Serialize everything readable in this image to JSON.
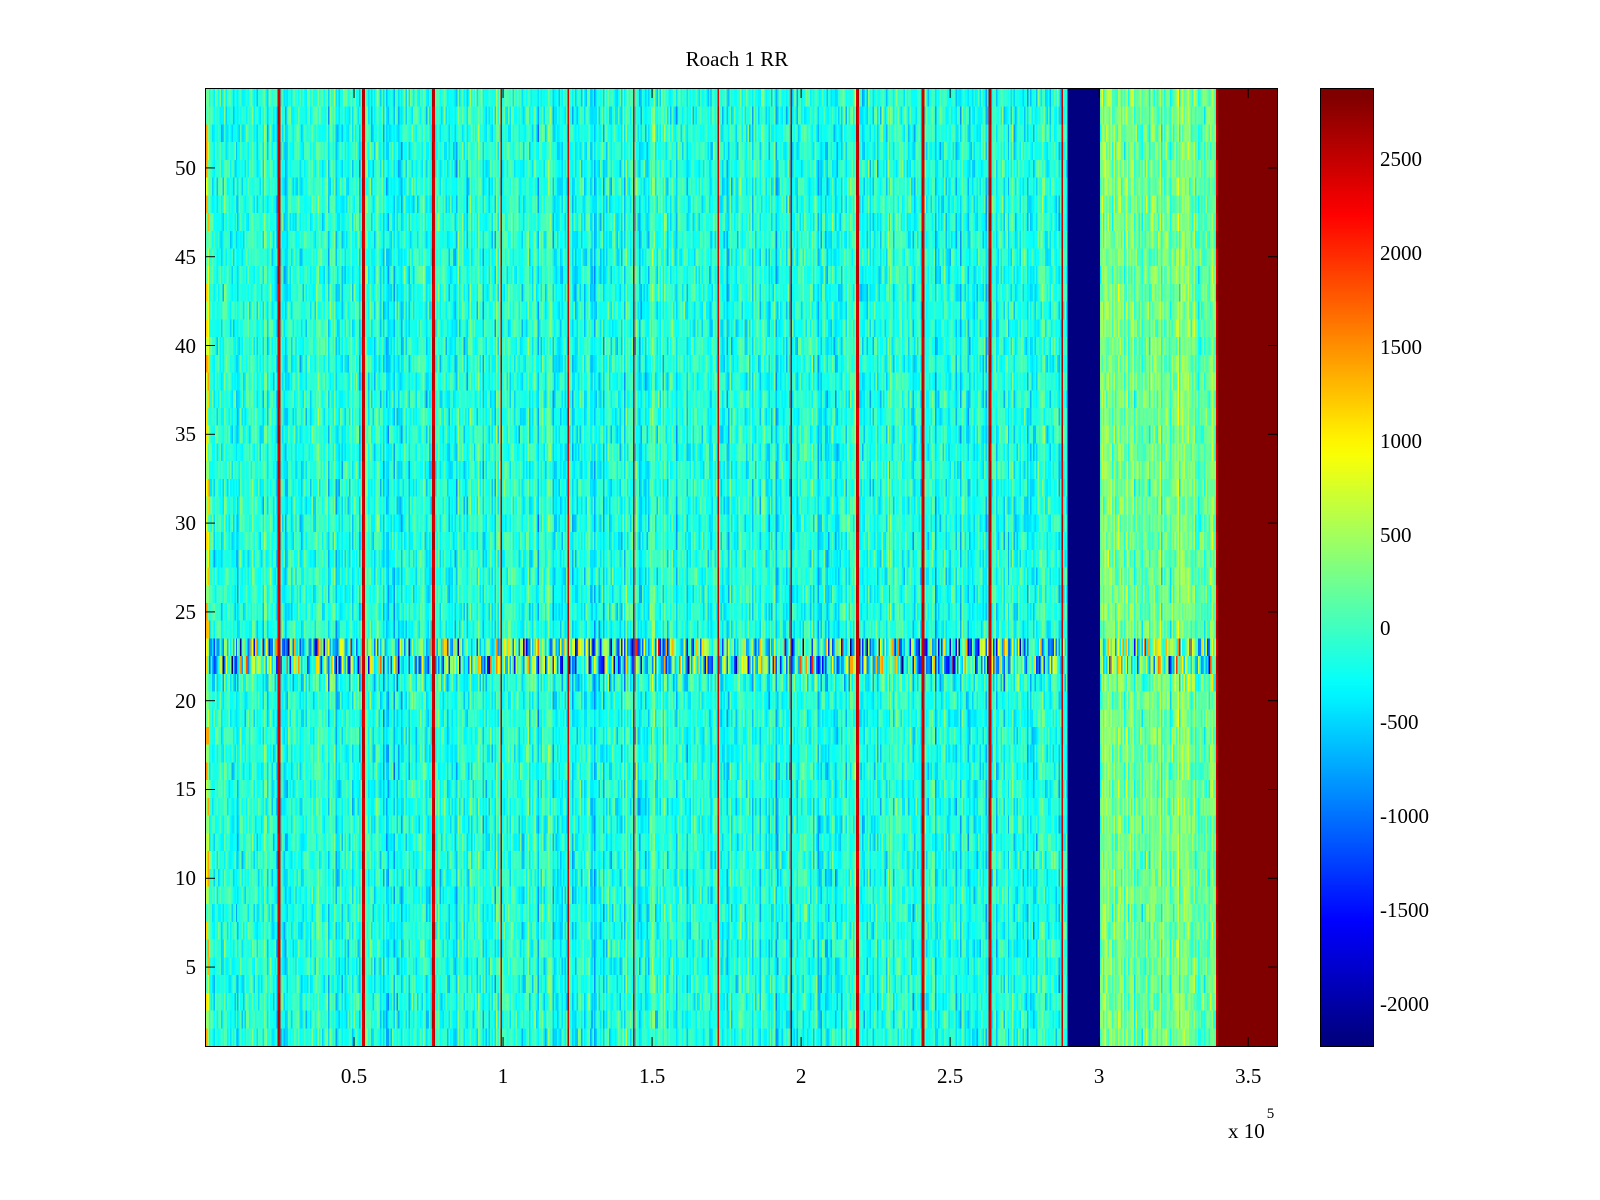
{
  "chart_data": {
    "type": "heatmap",
    "title": "Roach 1 RR",
    "xlabel": "",
    "ylabel": "",
    "xlim": [
      0,
      360000
    ],
    "ylim": [
      0.5,
      54.5
    ],
    "x_ticks": [
      50000,
      100000,
      150000,
      200000,
      250000,
      300000,
      350000
    ],
    "x_tick_labels": [
      "0.5",
      "1",
      "1.5",
      "2",
      "2.5",
      "3",
      "3.5"
    ],
    "x_exponent_label": {
      "base": "x 10",
      "exponent": "5"
    },
    "y_ticks": [
      5,
      10,
      15,
      20,
      25,
      30,
      35,
      40,
      45,
      50
    ],
    "y_tick_labels": [
      "5",
      "10",
      "15",
      "20",
      "25",
      "30",
      "35",
      "40",
      "45",
      "50"
    ],
    "rows": 54,
    "colormap": "jet",
    "clim": [
      -2230,
      2880
    ],
    "colorbar": {
      "ticks": [
        -2000,
        -1500,
        -1000,
        -500,
        0,
        500,
        1000,
        1500,
        2000,
        2500
      ],
      "tick_labels": [
        "-2000",
        "-1500",
        "-1000",
        "-500",
        "0",
        "500",
        "1000",
        "1500",
        "2000",
        "2500"
      ]
    },
    "background_mean": -150,
    "background_spread": 450,
    "high_spike_columns_x": [
      24500,
      53000,
      76500,
      99300,
      121700,
      143900,
      172400,
      196800,
      219000,
      241000,
      263500,
      287700,
      339600
    ],
    "low_band": {
      "x_range": [
        289700,
        300400
      ],
      "value": -2230
    },
    "high_band": {
      "x_range": [
        340000,
        360000
      ],
      "value": 2880
    },
    "elevated_region": {
      "x_range": [
        300400,
        340000
      ],
      "mean": 250
    },
    "noisy_rows": [
      {
        "rows": [
          22,
          23
        ],
        "spread": 2000
      },
      {
        "rows": [
          21
        ],
        "spread": 700
      }
    ]
  }
}
